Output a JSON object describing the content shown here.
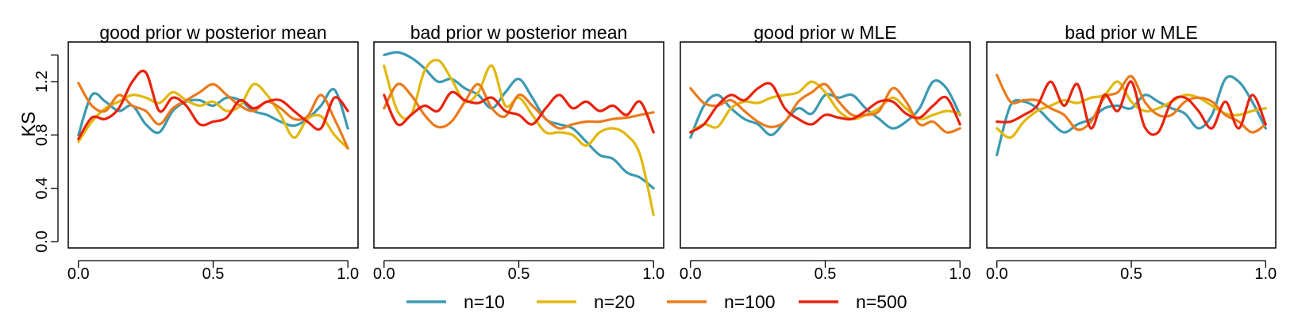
{
  "chart_data": [
    {
      "type": "line",
      "title": "good prior w posterior mean",
      "ylabel": "KS",
      "xlim": [
        0,
        1
      ],
      "ylim": [
        0,
        1.45
      ],
      "xticks": [
        "0.0",
        "0.5",
        "1.0"
      ],
      "yticks": [
        "0.0",
        "0.4",
        "0.8",
        "1.2"
      ],
      "x": [
        0,
        0.05,
        0.1,
        0.15,
        0.2,
        0.25,
        0.3,
        0.35,
        0.4,
        0.45,
        0.5,
        0.55,
        0.6,
        0.65,
        0.7,
        0.75,
        0.8,
        0.85,
        0.9,
        0.95,
        1.0
      ],
      "series": [
        {
          "name": "n=10",
          "values": [
            0.8,
            1.1,
            1.05,
            0.98,
            1.02,
            0.88,
            0.82,
            0.98,
            1.05,
            1.06,
            1.02,
            1.08,
            1.06,
            0.98,
            0.95,
            0.9,
            0.87,
            0.92,
            1.02,
            1.14,
            0.85
          ]
        },
        {
          "name": "n=20",
          "values": [
            0.75,
            0.9,
            1.0,
            1.05,
            1.1,
            1.08,
            1.04,
            1.12,
            1.06,
            1.02,
            1.05,
            0.98,
            1.02,
            1.18,
            1.1,
            0.95,
            0.78,
            0.92,
            0.94,
            0.8,
            0.7
          ]
        },
        {
          "name": "n=100",
          "values": [
            1.19,
            1.02,
            0.98,
            1.1,
            1.02,
            0.98,
            0.88,
            1.0,
            1.06,
            1.12,
            1.18,
            1.1,
            1.02,
            0.98,
            1.05,
            1.0,
            0.92,
            0.94,
            1.1,
            0.92,
            0.7
          ]
        },
        {
          "name": "n=500",
          "values": [
            0.77,
            0.93,
            0.92,
            1.0,
            1.2,
            1.27,
            0.98,
            1.08,
            1.02,
            0.88,
            0.9,
            0.93,
            1.06,
            1.0,
            1.05,
            1.06,
            0.98,
            0.9,
            0.85,
            1.08,
            0.98
          ]
        }
      ]
    },
    {
      "type": "line",
      "title": "bad prior w posterior mean",
      "xlim": [
        0,
        1
      ],
      "ylim": [
        0,
        1.45
      ],
      "xticks": [
        "0.0",
        "0.5",
        "1.0"
      ],
      "yticks": [],
      "x": [
        0,
        0.05,
        0.1,
        0.15,
        0.2,
        0.25,
        0.3,
        0.35,
        0.4,
        0.45,
        0.5,
        0.55,
        0.6,
        0.65,
        0.7,
        0.75,
        0.8,
        0.85,
        0.9,
        0.95,
        1.0
      ],
      "series": [
        {
          "name": "n=10",
          "values": [
            1.4,
            1.42,
            1.38,
            1.3,
            1.2,
            1.22,
            1.15,
            1.1,
            1.0,
            1.12,
            1.22,
            1.08,
            0.92,
            0.88,
            0.85,
            0.75,
            0.65,
            0.62,
            0.52,
            0.48,
            0.4
          ]
        },
        {
          "name": "n=20",
          "values": [
            1.32,
            0.98,
            0.95,
            1.28,
            1.36,
            1.22,
            1.05,
            1.12,
            1.32,
            1.02,
            1.08,
            0.95,
            0.82,
            0.82,
            0.8,
            0.72,
            0.82,
            0.85,
            0.8,
            0.65,
            0.2
          ]
        },
        {
          "name": "n=100",
          "values": [
            1.0,
            1.18,
            1.1,
            0.95,
            0.86,
            0.9,
            1.05,
            1.18,
            1.0,
            0.94,
            1.1,
            1.02,
            0.92,
            0.85,
            0.88,
            0.9,
            0.9,
            0.92,
            0.93,
            0.95,
            0.97
          ]
        },
        {
          "name": "n=500",
          "values": [
            1.1,
            0.88,
            0.95,
            1.02,
            0.98,
            1.12,
            1.06,
            1.04,
            1.08,
            0.98,
            0.95,
            0.88,
            1.0,
            1.1,
            1.0,
            1.05,
            0.98,
            1.02,
            0.95,
            1.05,
            0.82
          ]
        }
      ]
    },
    {
      "type": "line",
      "title": "good prior w MLE",
      "xlim": [
        0,
        1
      ],
      "ylim": [
        0,
        1.45
      ],
      "xticks": [
        "0.0",
        "0.5",
        "1.0"
      ],
      "yticks": [],
      "x": [
        0,
        0.05,
        0.1,
        0.15,
        0.2,
        0.25,
        0.3,
        0.35,
        0.4,
        0.45,
        0.5,
        0.55,
        0.6,
        0.65,
        0.7,
        0.75,
        0.8,
        0.85,
        0.9,
        0.95,
        1.0
      ],
      "series": [
        {
          "name": "n=10",
          "values": [
            0.78,
            1.02,
            1.1,
            1.0,
            0.92,
            0.88,
            0.8,
            0.9,
            1.0,
            0.96,
            1.1,
            1.08,
            1.1,
            1.0,
            0.92,
            0.85,
            0.9,
            1.0,
            1.2,
            1.15,
            0.95
          ]
        },
        {
          "name": "n=20",
          "values": [
            0.82,
            0.88,
            0.86,
            1.0,
            1.05,
            1.04,
            1.08,
            1.1,
            1.12,
            1.2,
            1.12,
            0.98,
            0.92,
            0.95,
            1.0,
            1.08,
            1.0,
            0.92,
            0.95,
            0.98,
            0.96
          ]
        },
        {
          "name": "n=100",
          "values": [
            1.15,
            1.04,
            1.02,
            1.06,
            0.98,
            0.9,
            0.86,
            0.9,
            1.05,
            1.12,
            1.18,
            1.05,
            0.95,
            0.95,
            0.98,
            1.15,
            1.05,
            0.88,
            0.9,
            0.82,
            0.85
          ]
        },
        {
          "name": "n=500",
          "values": [
            0.82,
            0.88,
            1.02,
            1.1,
            1.06,
            1.15,
            1.18,
            1.0,
            0.92,
            0.88,
            0.95,
            0.93,
            0.92,
            0.98,
            1.05,
            1.05,
            0.96,
            0.93,
            1.02,
            1.08,
            0.88
          ]
        }
      ]
    },
    {
      "type": "line",
      "title": "bad prior w MLE",
      "xlim": [
        0,
        1
      ],
      "ylim": [
        0,
        1.45
      ],
      "xticks": [
        "0.0",
        "0.5",
        "1.0"
      ],
      "yticks": [],
      "x": [
        0,
        0.05,
        0.1,
        0.15,
        0.2,
        0.25,
        0.3,
        0.35,
        0.4,
        0.45,
        0.5,
        0.55,
        0.6,
        0.65,
        0.7,
        0.75,
        0.8,
        0.85,
        0.9,
        0.95,
        1.0
      ],
      "series": [
        {
          "name": "n=10",
          "values": [
            0.65,
            1.02,
            1.05,
            1.0,
            0.9,
            0.82,
            0.88,
            0.92,
            1.0,
            1.02,
            1.0,
            1.1,
            1.05,
            1.0,
            0.96,
            0.85,
            0.95,
            1.22,
            1.2,
            1.05,
            0.85
          ]
        },
        {
          "name": "n=20",
          "values": [
            0.85,
            0.78,
            0.9,
            0.98,
            1.02,
            1.06,
            1.04,
            1.08,
            1.1,
            1.2,
            1.05,
            0.98,
            1.0,
            1.05,
            1.1,
            1.08,
            1.02,
            0.96,
            0.95,
            0.98,
            1.0
          ]
        },
        {
          "name": "n=100",
          "values": [
            1.25,
            1.05,
            1.06,
            1.06,
            1.0,
            0.95,
            0.84,
            0.9,
            1.08,
            1.12,
            1.24,
            1.05,
            0.95,
            0.95,
            1.05,
            1.08,
            1.05,
            0.95,
            0.9,
            0.82,
            0.88
          ]
        },
        {
          "name": "n=500",
          "values": [
            0.9,
            0.9,
            0.95,
            1.02,
            1.2,
            1.02,
            1.18,
            0.85,
            1.1,
            0.98,
            1.2,
            0.86,
            0.82,
            1.05,
            1.08,
            0.98,
            0.85,
            1.05,
            0.85,
            1.1,
            0.88
          ]
        }
      ]
    }
  ],
  "legend": {
    "placement": "bottom",
    "entries": [
      {
        "label": "n=10",
        "color": "#3B9AB2"
      },
      {
        "label": "n=20",
        "color": "#E1B80D"
      },
      {
        "label": "n=100",
        "color": "#EB7A1C"
      },
      {
        "label": "n=500",
        "color": "#E8230E"
      }
    ]
  }
}
